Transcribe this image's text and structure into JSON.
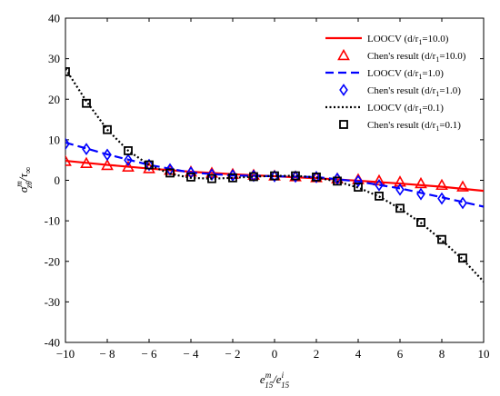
{
  "chart_data": {
    "type": "line",
    "title": "",
    "xlabel_parts": {
      "base": "e",
      "sup1": "m",
      "sub1": "15",
      "slash": "/e",
      "sup2": "i",
      "sub2": "15"
    },
    "ylabel_parts": {
      "sigma": "σ",
      "sup": "m",
      "sub": "zθ",
      "slash": "/τ",
      "sub2": "∞"
    },
    "xlim": [
      -10,
      10
    ],
    "ylim": [
      -40,
      40
    ],
    "xticks": [
      -10,
      -8,
      -6,
      -4,
      -2,
      0,
      2,
      4,
      6,
      8,
      10
    ],
    "xtick_labels": [
      "−10",
      "− 8",
      "− 6",
      "− 4",
      "− 2",
      "0",
      "2",
      "4",
      "6",
      "8",
      "10"
    ],
    "yticks": [
      -40,
      -30,
      -20,
      -10,
      0,
      10,
      20,
      30,
      40
    ],
    "ytick_labels": [
      "-40",
      "-30",
      "-20",
      "-10",
      "0",
      "10",
      "20",
      "30",
      "40"
    ],
    "grid": false,
    "legend_position": "top-right",
    "series": [
      {
        "name": "LOOCV (d/r",
        "name_sub": "1",
        "name_tail": "=10.0)",
        "style": "line-solid",
        "color": "#ff0000",
        "x": [
          -10,
          -8,
          -6,
          -4,
          -2,
          0,
          2,
          4,
          6,
          8,
          10
        ],
        "y": [
          4.8,
          3.8,
          2.9,
          2.1,
          1.5,
          1.0,
          0.5,
          -0.1,
          -0.8,
          -1.6,
          -2.6
        ]
      },
      {
        "name": "Chen's result (d/r",
        "name_sub": "1",
        "name_tail": "=10.0)",
        "style": "marker-triangle",
        "color": "#ff0000",
        "x": [
          -10,
          -9,
          -8,
          -7,
          -6,
          -5,
          -4,
          -3,
          -2,
          -1,
          0,
          1,
          2,
          3,
          4,
          5,
          6,
          7,
          8,
          9
        ],
        "y": [
          4.7,
          4.2,
          3.7,
          3.3,
          2.9,
          2.5,
          2.1,
          1.8,
          1.5,
          1.3,
          1.1,
          0.9,
          0.7,
          0.4,
          0.2,
          -0.1,
          -0.4,
          -0.8,
          -1.2,
          -1.6
        ]
      },
      {
        "name": "LOOCV (d/r",
        "name_sub": "1",
        "name_tail": "=1.0)",
        "style": "line-dashed",
        "color": "#0000ff",
        "x": [
          -10,
          -8,
          -6,
          -4,
          -2,
          0,
          2,
          4,
          6,
          8,
          10
        ],
        "y": [
          9.3,
          6.4,
          3.8,
          1.9,
          1.2,
          1.0,
          0.8,
          -0.3,
          -2.0,
          -4.2,
          -6.5
        ]
      },
      {
        "name": "Chen's result (d/r",
        "name_sub": "1",
        "name_tail": "=1.0)",
        "style": "marker-diamond",
        "color": "#0000ff",
        "x": [
          -10,
          -9,
          -8,
          -7,
          -6,
          -5,
          -4,
          -3,
          -2,
          -1,
          0,
          1,
          2,
          3,
          4,
          5,
          6,
          7,
          8,
          9
        ],
        "y": [
          9.0,
          7.7,
          6.3,
          5.0,
          3.8,
          2.7,
          1.9,
          1.4,
          1.2,
          1.1,
          1.0,
          0.9,
          0.8,
          0.4,
          -0.2,
          -1.2,
          -2.3,
          -3.4,
          -4.5,
          -5.6
        ]
      },
      {
        "name": "LOOCV (d/r",
        "name_sub": "1",
        "name_tail": "=0.1)",
        "style": "line-dotted",
        "color": "#000000",
        "x": [
          -10,
          -9,
          -8,
          -7,
          -6,
          -5,
          -4,
          -3,
          -2,
          -1,
          0,
          1,
          2,
          3,
          4,
          5,
          6,
          7,
          8,
          9,
          10
        ],
        "y": [
          27.5,
          19.5,
          12.5,
          7.3,
          3.8,
          1.6,
          0.6,
          0.4,
          0.6,
          0.9,
          1.1,
          1.1,
          0.7,
          -0.3,
          -1.8,
          -4.0,
          -7.0,
          -10.5,
          -14.8,
          -19.5,
          -25.0
        ]
      },
      {
        "name": "Chen's result (d/r",
        "name_sub": "1",
        "name_tail": "=0.1)",
        "style": "marker-square",
        "color": "#000000",
        "x": [
          -10,
          -9,
          -8,
          -7,
          -6,
          -5,
          -4,
          -3,
          -2,
          -1,
          0,
          1,
          2,
          3,
          4,
          5,
          6,
          7,
          8,
          9
        ],
        "y": [
          26.8,
          19.0,
          12.5,
          7.3,
          3.8,
          1.8,
          0.8,
          0.4,
          0.6,
          0.9,
          1.1,
          1.1,
          0.8,
          -0.2,
          -1.7,
          -3.9,
          -6.9,
          -10.4,
          -14.6,
          -19.2
        ]
      }
    ]
  }
}
